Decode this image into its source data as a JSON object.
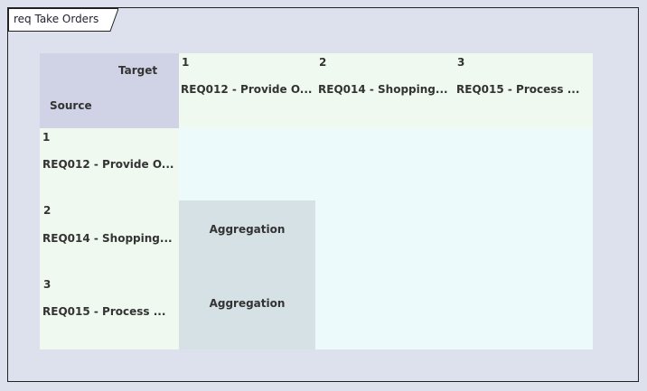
{
  "diagram": {
    "title": "req Take Orders"
  },
  "matrix": {
    "corner": {
      "target_label": "Target",
      "source_label": "Source"
    },
    "columns": [
      {
        "index": "1",
        "name": "REQ012 - Provide O..."
      },
      {
        "index": "2",
        "name": "REQ014 - Shopping..."
      },
      {
        "index": "3",
        "name": "REQ015 - Process ..."
      }
    ],
    "rows": [
      {
        "index": "1",
        "name": "REQ012 - Provide O..."
      },
      {
        "index": "2",
        "name": "REQ014 - Shopping..."
      },
      {
        "index": "3",
        "name": "REQ015 - Process ..."
      }
    ],
    "cells": [
      {
        "row": 2,
        "col": 1,
        "label": "Aggregation"
      },
      {
        "row": 3,
        "col": 1,
        "label": "Aggregation"
      }
    ]
  }
}
